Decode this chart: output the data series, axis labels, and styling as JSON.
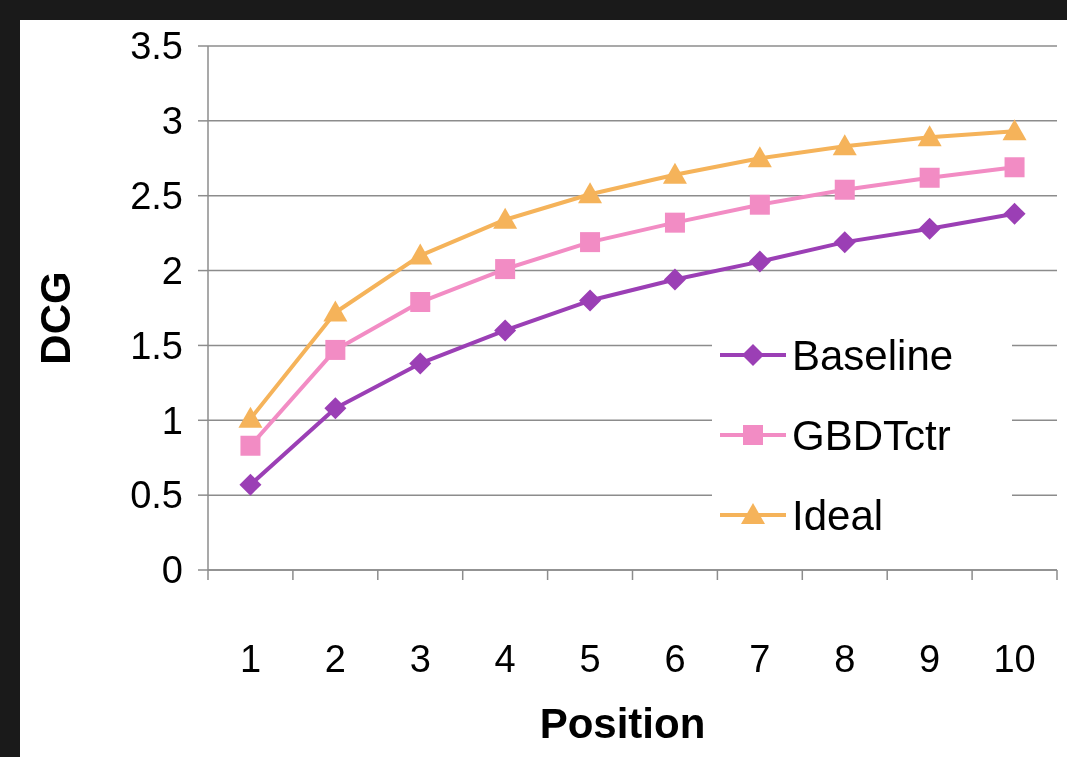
{
  "chart_data": {
    "type": "line",
    "xlabel": "Position",
    "ylabel": "DCG",
    "categories": [
      "1",
      "2",
      "3",
      "4",
      "5",
      "6",
      "7",
      "8",
      "9",
      "10"
    ],
    "series": [
      {
        "name": "Baseline",
        "color": "#9b3fb5",
        "marker": "diamond",
        "values": [
          0.57,
          1.08,
          1.38,
          1.6,
          1.8,
          1.94,
          2.06,
          2.19,
          2.28,
          2.38
        ]
      },
      {
        "name": "GBDTctr",
        "color": "#f28cc4",
        "marker": "square",
        "values": [
          0.83,
          1.47,
          1.79,
          2.01,
          2.19,
          2.32,
          2.44,
          2.54,
          2.62,
          2.69
        ]
      },
      {
        "name": "Ideal",
        "color": "#f5b35a",
        "marker": "triangle",
        "values": [
          1.01,
          1.72,
          2.1,
          2.34,
          2.51,
          2.64,
          2.75,
          2.83,
          2.89,
          2.93
        ]
      }
    ],
    "ylim": [
      0,
      3.5
    ],
    "yticks": [
      0,
      0.5,
      1,
      1.5,
      2,
      2.5,
      3,
      3.5
    ],
    "grid": "y",
    "legend": "right",
    "line_style": "solid"
  }
}
